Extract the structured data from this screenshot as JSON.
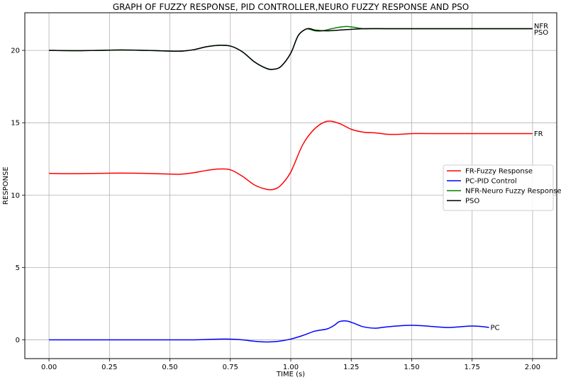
{
  "chart_data": {
    "type": "line",
    "title": "GRAPH OF FUZZY RESPONSE, PID CONTROLLER,NEURO FUZZY RESPONSE AND PSO",
    "xlabel": "TIME (s)",
    "ylabel": "RESPONSE",
    "xlim": [
      -0.1,
      2.1
    ],
    "ylim": [
      -1.3,
      22.6
    ],
    "xticks": [
      "0.00",
      "0.25",
      "0.50",
      "0.75",
      "1.00",
      "1.25",
      "1.50",
      "1.75",
      "2.00"
    ],
    "xtick_values": [
      0,
      0.25,
      0.5,
      0.75,
      1.0,
      1.25,
      1.5,
      1.75,
      2.0
    ],
    "yticks": [
      "0",
      "5",
      "10",
      "15",
      "20"
    ],
    "ytick_values": [
      0,
      5,
      10,
      15,
      20
    ],
    "grid": true,
    "legend_position": "center-right",
    "series": [
      {
        "name": "FR-Fuzzy Response",
        "end_label": "FR",
        "color": "#ff0000",
        "x": [
          0,
          0.1,
          0.2,
          0.3,
          0.4,
          0.5,
          0.55,
          0.6,
          0.65,
          0.7,
          0.75,
          0.8,
          0.85,
          0.9,
          0.93,
          0.96,
          1.0,
          1.05,
          1.1,
          1.15,
          1.2,
          1.25,
          1.3,
          1.35,
          1.4,
          1.45,
          1.5,
          1.6,
          1.7,
          1.8,
          1.9,
          2.0
        ],
        "y": [
          11.5,
          11.48,
          11.5,
          11.52,
          11.5,
          11.45,
          11.45,
          11.55,
          11.7,
          11.8,
          11.75,
          11.3,
          10.7,
          10.4,
          10.4,
          10.7,
          11.6,
          13.5,
          14.6,
          15.1,
          14.95,
          14.55,
          14.35,
          14.3,
          14.2,
          14.2,
          14.25,
          14.25,
          14.25,
          14.25,
          14.25,
          14.25
        ]
      },
      {
        "name": "PC-PID Control",
        "end_label": "PC",
        "color": "#0000ff",
        "x": [
          0,
          0.2,
          0.4,
          0.6,
          0.7,
          0.75,
          0.8,
          0.85,
          0.9,
          0.95,
          1.0,
          1.05,
          1.1,
          1.15,
          1.18,
          1.2,
          1.23,
          1.26,
          1.3,
          1.35,
          1.4,
          1.5,
          1.6,
          1.65,
          1.7,
          1.75,
          1.8,
          1.82
        ],
        "y": [
          0,
          0,
          0,
          0,
          0.05,
          0.05,
          0,
          -0.1,
          -0.15,
          -0.1,
          0.05,
          0.3,
          0.6,
          0.75,
          1.0,
          1.25,
          1.3,
          1.15,
          0.9,
          0.8,
          0.9,
          1.0,
          0.9,
          0.85,
          0.9,
          0.95,
          0.9,
          0.85
        ]
      },
      {
        "name": "NFR-Neuro Fuzzy Response",
        "end_label": "NFR",
        "color": "#008000",
        "x": [
          0,
          0.1,
          0.2,
          0.3,
          0.4,
          0.5,
          0.55,
          0.6,
          0.65,
          0.7,
          0.75,
          0.8,
          0.85,
          0.9,
          0.93,
          0.96,
          1.0,
          1.03,
          1.06,
          1.08,
          1.1,
          1.13,
          1.17,
          1.2,
          1.23,
          1.26,
          1.3,
          1.35,
          1.4,
          1.5,
          1.6,
          1.7,
          1.8,
          1.9,
          2.0
        ],
        "y": [
          20.0,
          19.98,
          20.0,
          20.03,
          20.0,
          19.95,
          19.95,
          20.05,
          20.25,
          20.35,
          20.3,
          19.9,
          19.2,
          18.75,
          18.7,
          18.9,
          19.8,
          21.0,
          21.45,
          21.45,
          21.35,
          21.35,
          21.5,
          21.6,
          21.65,
          21.6,
          21.5,
          21.5,
          21.5,
          21.5,
          21.5,
          21.5,
          21.5,
          21.5,
          21.5
        ]
      },
      {
        "name": "PSO",
        "end_label": "PSO",
        "color": "#000000",
        "x": [
          0,
          0.1,
          0.2,
          0.3,
          0.4,
          0.5,
          0.55,
          0.6,
          0.65,
          0.7,
          0.75,
          0.8,
          0.85,
          0.9,
          0.93,
          0.96,
          1.0,
          1.03,
          1.06,
          1.08,
          1.1,
          1.15,
          1.2,
          1.3,
          1.4,
          1.5,
          1.6,
          1.7,
          1.8,
          1.9,
          2.0
        ],
        "y": [
          20.0,
          19.98,
          20.0,
          20.03,
          20.0,
          19.95,
          19.95,
          20.05,
          20.25,
          20.35,
          20.3,
          19.9,
          19.2,
          18.75,
          18.7,
          18.9,
          19.8,
          21.0,
          21.45,
          21.5,
          21.4,
          21.35,
          21.4,
          21.5,
          21.5,
          21.5,
          21.5,
          21.5,
          21.5,
          21.5,
          21.5
        ]
      }
    ]
  }
}
